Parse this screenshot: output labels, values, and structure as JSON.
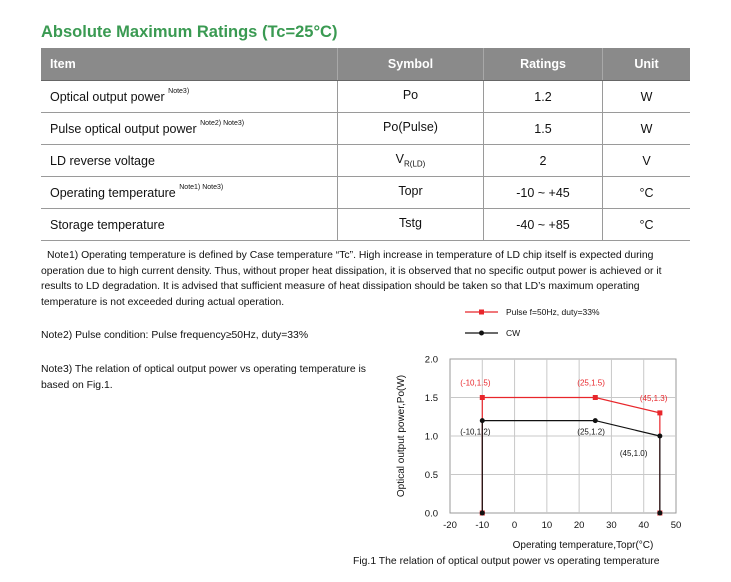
{
  "title": "Absolute Maximum Ratings (Tc=25°C)",
  "table": {
    "headers": [
      "Item",
      "Symbol",
      "Ratings",
      "Unit"
    ],
    "rows": [
      {
        "item": "Optical output power",
        "note": "Note3)",
        "symbol": "Po",
        "symbol_sub": "",
        "rating": "1.2",
        "unit": "W"
      },
      {
        "item": "Pulse optical output power",
        "note": "Note2) Note3)",
        "symbol": "Po(Pulse)",
        "symbol_sub": "",
        "rating": "1.5",
        "unit": "W"
      },
      {
        "item": "LD reverse voltage",
        "note": "",
        "symbol": "V",
        "symbol_sub": "R(LD)",
        "rating": "2",
        "unit": "V"
      },
      {
        "item": "Operating temperature",
        "note": "Note1) Note3)",
        "symbol": "Topr",
        "symbol_sub": "",
        "rating": "-10 ~ +45",
        "unit": "°C"
      },
      {
        "item": "Storage temperature",
        "note": "",
        "symbol": "Tstg",
        "symbol_sub": "",
        "rating": "-40 ~ +85",
        "unit": "°C"
      }
    ]
  },
  "notes": {
    "note1": "Note1) Operating temperature is defined by Case temperature “Tc”. High increase in temperature of LD chip itself is expected during operation  due to high current density. Thus, without proper heat dissipation, it is observed that no specific output power is achieved or it results to LD degradation. It is advised that sufficient measure of heat dissipation should be taken so that LD’s maximum operating temperature is not exceeded during actual operation.",
    "note2": "Note2) Pulse condition: Pulse frequency≥50Hz, duty=33%",
    "note3": "Note3) The relation of optical output power vs operating temperature is based on Fig.1."
  },
  "caption": "Fig.1 The relation of optical output power vs operating temperature",
  "chart_data": {
    "type": "line",
    "xlabel": "Operating temperature,Topr(°C)",
    "ylabel": "Optical output power,Po(W)",
    "xlim": [
      -20,
      50
    ],
    "ylim": [
      0.0,
      2.0
    ],
    "xticks": [
      "-20",
      "-10",
      "0",
      "10",
      "20",
      "30",
      "40",
      "50"
    ],
    "yticks": [
      "0.0",
      "0.5",
      "1.0",
      "1.5",
      "2.0"
    ],
    "grid": true,
    "legend_placement": "top-right",
    "series": [
      {
        "name": "Pulse f=50Hz, duty=33%",
        "color": "#e8262b",
        "marker": "square",
        "x": [
          -10,
          -10,
          25,
          45,
          45
        ],
        "y": [
          0.0,
          1.5,
          1.5,
          1.3,
          0.0
        ],
        "labels": [
          "",
          "(-10,1.5)",
          "(25,1.5)",
          "(45,1.3)",
          ""
        ]
      },
      {
        "name": "CW",
        "color": "#111111",
        "marker": "circle",
        "x": [
          -10,
          -10,
          25,
          45,
          45
        ],
        "y": [
          0.0,
          1.2,
          1.2,
          1.0,
          0.0
        ],
        "labels": [
          "",
          "(-10,1.2)",
          "(25,1.2)",
          "(45,1.0)",
          ""
        ]
      }
    ]
  }
}
